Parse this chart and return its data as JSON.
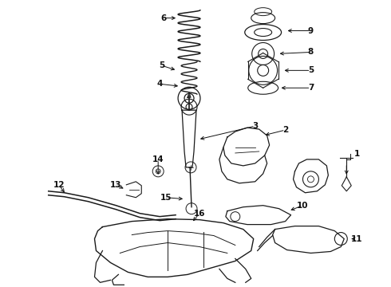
{
  "background_color": "#ffffff",
  "line_color": "#1a1a1a",
  "label_color": "#111111",
  "fig_width": 4.9,
  "fig_height": 3.6,
  "dpi": 100
}
